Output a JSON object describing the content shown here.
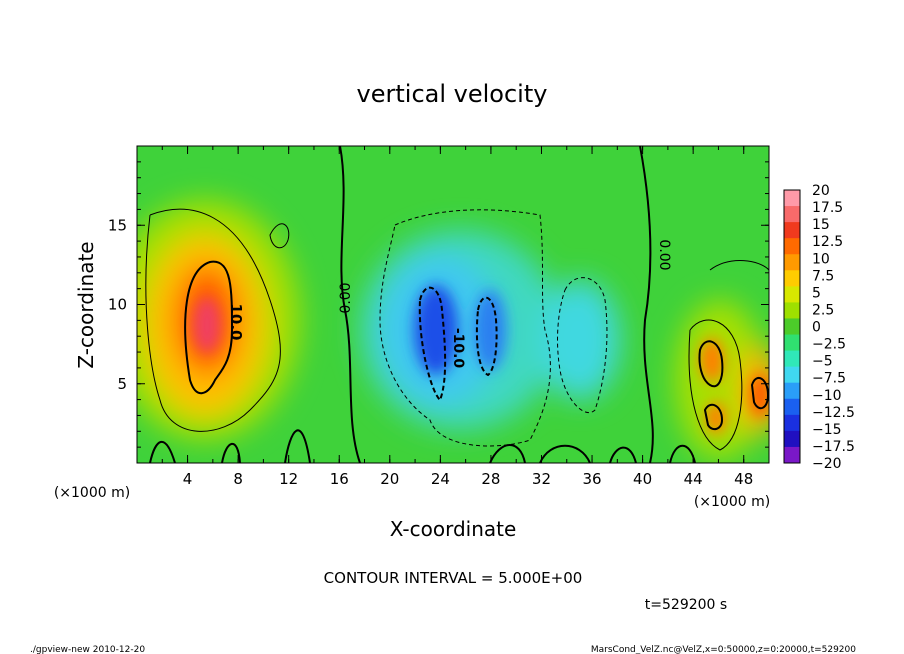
{
  "chart_data": {
    "type": "heatmap",
    "title": "vertical velocity",
    "xlabel": "X-coordinate",
    "ylabel": "Z-coordinate",
    "x_unit_left": "(×1000 m)",
    "x_unit_right": "(×1000 m)",
    "xlim": [
      0,
      50
    ],
    "ylim": [
      0,
      20
    ],
    "x_ticks": [
      "4",
      "8",
      "12",
      "16",
      "20",
      "24",
      "28",
      "32",
      "36",
      "40",
      "44",
      "48"
    ],
    "y_ticks": [
      "5",
      "10",
      "15"
    ],
    "colorbar_labels": [
      "20",
      "17.5",
      "15",
      "12.5",
      "10",
      "7.5",
      "5",
      "2.5",
      "0",
      "−2.5",
      "−5",
      "−7.5",
      "−10",
      "−12.5",
      "−15",
      "−17.5",
      "−20"
    ],
    "colorbar_colors": [
      "#ff9aa8",
      "#f86a6a",
      "#f03a1e",
      "#ff6a00",
      "#ff9a00",
      "#ffcc00",
      "#d8e800",
      "#9ee000",
      "#4ccc2a",
      "#30e070",
      "#30e8b8",
      "#40d8f0",
      "#2a9ef8",
      "#1a60f0",
      "#1a30e0",
      "#2010c0",
      "#7a18c8"
    ],
    "contour_labels": [
      "10.0",
      "0.00",
      "-10.0",
      "0.00"
    ],
    "contour_interval": "CONTOUR INTERVAL = 5.000E+00",
    "time_label": "t=529200 s",
    "footer_left": "./gpview-new 2010-12-20",
    "footer_right": "MarsCond_VelZ.nc@VelZ,x=0:50000,z=0:20000,t=529200",
    "features": [
      {
        "kind": "updraft",
        "x": 6,
        "z": 8.5,
        "peak": 17
      },
      {
        "kind": "downdraft",
        "x": 24,
        "z": 8,
        "peak": -12
      },
      {
        "kind": "downdraft",
        "x": 28,
        "z": 9,
        "peak": -10
      },
      {
        "kind": "downdraft",
        "x": 34,
        "z": 7,
        "peak": -6
      },
      {
        "kind": "updraft",
        "x": 45.5,
        "z": 5.5,
        "peak": 12
      },
      {
        "kind": "updraft",
        "x": 49.5,
        "z": 4.5,
        "peak": 12
      }
    ]
  }
}
